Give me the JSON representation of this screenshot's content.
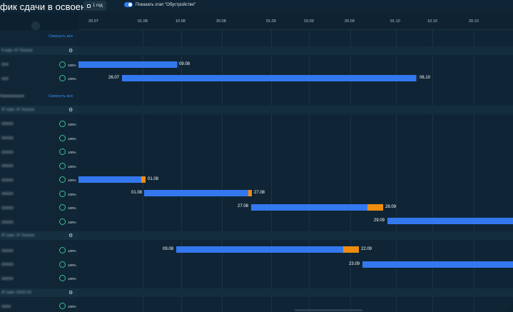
{
  "header": {
    "title": "фик сдачи в освоение",
    "range_button": "1 год",
    "toggle_label": "Показать этап \"Обустройство\""
  },
  "timeline": {
    "dates": [
      "20.07",
      "01.08",
      "10.08",
      "20.08",
      "01.09",
      "10.09",
      "20.09",
      "01.10",
      "10.10",
      "20.10"
    ]
  },
  "sidebar": {
    "collapse_all_1": "Свернуть все",
    "collapse_all_2": "Свернуть все",
    "section_2_title": "Хххххххххххх",
    "groups": [
      {
        "title": "Х корп. ХГ Ххххххх"
      },
      {
        "title": "ХГ корп. ХГ Ххххххх"
      },
      {
        "title": "ХГ корп. ХГ Ххххххх"
      },
      {
        "title": "ХГ корп. ХХХХ ХХ"
      }
    ],
    "rows": [
      {
        "label": "ХХХ",
        "pct": "100%"
      },
      {
        "label": "ХХХ",
        "pct": "100%"
      },
      {
        "label": "ХХХХХ",
        "pct": "100%"
      },
      {
        "label": "ХХХХХ",
        "pct": "100%"
      },
      {
        "label": "ХХХХХ",
        "pct": "100%"
      },
      {
        "label": "ХХХХХ",
        "pct": "100%"
      },
      {
        "label": "ХХХХХ",
        "pct": "100%"
      },
      {
        "label": "ХХХХХ",
        "pct": "100%"
      },
      {
        "label": "ХХХХХ",
        "pct": "100%"
      },
      {
        "label": "ХХХХХ",
        "pct": "100%"
      },
      {
        "label": "ХХХХХ",
        "pct": "100%"
      },
      {
        "label": "ХХХХХ",
        "pct": "100%"
      },
      {
        "label": "ХХХХХ",
        "pct": "100%"
      },
      {
        "label": "ХХХХ",
        "pct": "100%"
      }
    ]
  },
  "bars": [
    {
      "end_label": "09.08"
    },
    {
      "start_label": "26.07",
      "end_label": "06.10"
    },
    {
      "end_label": "01.08"
    },
    {
      "start_label": "01.08",
      "end_label": "27.08"
    },
    {
      "start_label": "27.08",
      "end_label": "28.09"
    },
    {
      "start_label": "29.09"
    },
    {
      "start_label": "09.08",
      "end_label": "22.09"
    },
    {
      "start_label": "23.09"
    }
  ],
  "colors": {
    "bar": "#3478f0",
    "obustroystvo": "#ef8c10",
    "progress_ring": "#37c08e",
    "link": "#2f8cff"
  }
}
